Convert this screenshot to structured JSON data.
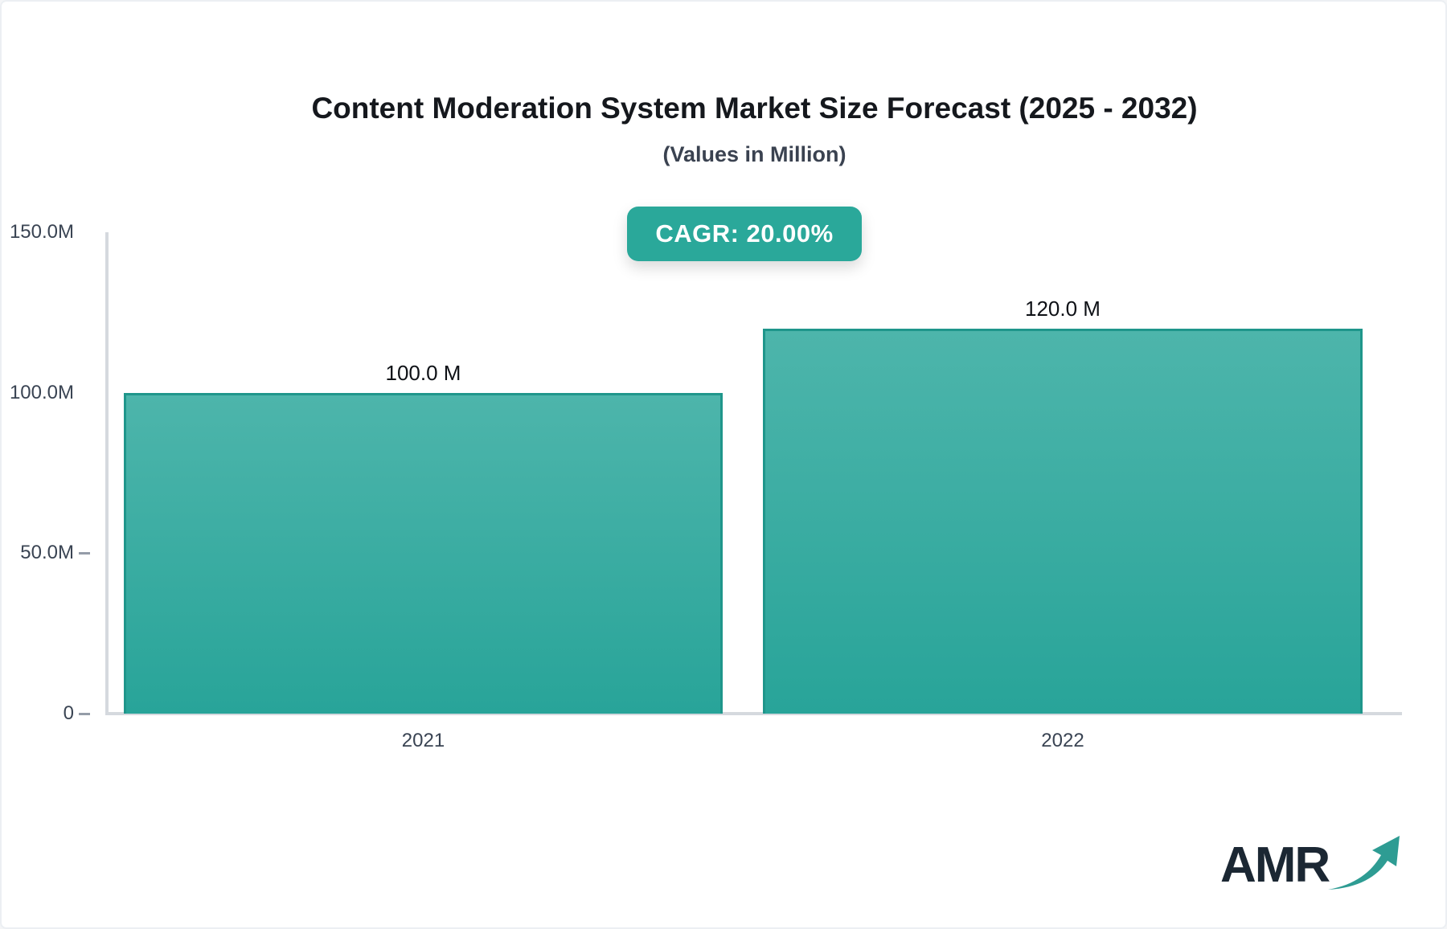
{
  "header": {
    "title": "Content Moderation System Market Size Forecast (2025 - 2032)",
    "subtitle": "(Values in Million)"
  },
  "badge": {
    "label": "CAGR: 20.00%",
    "bg_color": "#2aa89a",
    "text_color": "#ffffff"
  },
  "chart_data": {
    "type": "bar",
    "title": "Content Moderation System Market Size Forecast (2025 - 2032)",
    "subtitle": "(Values in Million)",
    "unit": "Million",
    "categories": [
      "2021",
      "2022"
    ],
    "values": [
      100.0,
      120.0
    ],
    "value_labels": [
      "100.0 M",
      "120.0 M"
    ],
    "cagr_percent": 20.0,
    "xlabel": "",
    "ylabel": "",
    "ylim": [
      0,
      150
    ],
    "grid": false,
    "legend": "none",
    "yticks": [
      {
        "value": 0,
        "label": "0",
        "dash_visible": true
      },
      {
        "value": 50,
        "label": "50.0M",
        "dash_visible": true
      },
      {
        "value": 100,
        "label": "100.0M",
        "dash_visible": false
      },
      {
        "value": 150,
        "label": "150.0M",
        "dash_visible": false
      }
    ],
    "colors": {
      "bar_gradient_top": "#4db5ab",
      "bar_gradient_bottom": "#28a499",
      "bar_border": "#1f968b",
      "axis_line": "#d5d9de",
      "tick_text": "#3a4453"
    }
  },
  "watermark": {
    "text": "AMR",
    "icon": "trend-up-arrow-icon",
    "text_color": "#1b2733",
    "arrow_color": "#2e9c93"
  }
}
